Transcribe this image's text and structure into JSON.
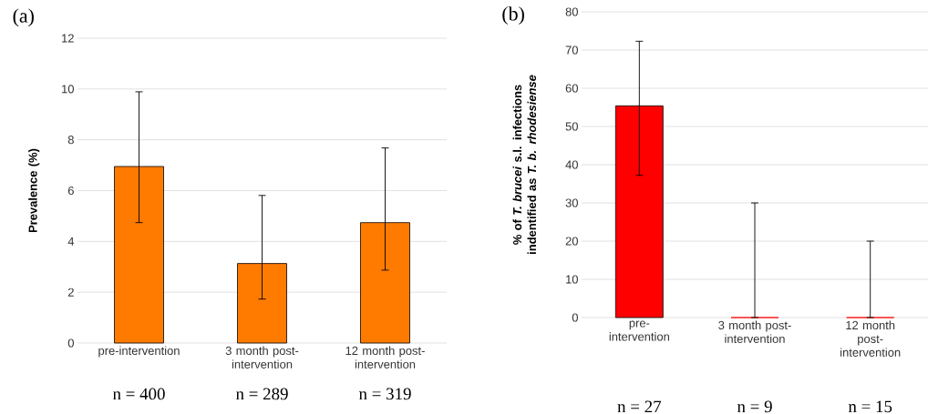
{
  "chart_data": [
    {
      "type": "bar",
      "title": "(a)",
      "ylabel": "Prevalence (%)",
      "categories": [
        "pre-intervention",
        "3 month post-intervention",
        "12 month post-intervention"
      ],
      "values": [
        6.95,
        3.13,
        4.74
      ],
      "errors": [
        [
          4.74,
          9.89
        ],
        [
          1.73,
          5.81
        ],
        [
          2.87,
          7.68
        ]
      ],
      "color": "#ff7b00",
      "ylim": [
        0,
        12
      ],
      "yticks": [
        0,
        2,
        4,
        6,
        8,
        10,
        12
      ],
      "grid": "y",
      "annotations": [
        "n = 400",
        "n = 289",
        "n = 319"
      ]
    },
    {
      "type": "bar",
      "title": "(b)",
      "ylabel": "% of *T. brucei* s.l. infections indentified as *T. b. rhodesiense*",
      "categories": [
        "pre-intervention",
        "3 month post-intervention",
        "12 month post-intervention"
      ],
      "values": [
        55.4,
        0,
        0
      ],
      "errors": [
        [
          37.2,
          72.3
        ],
        [
          0,
          30
        ],
        [
          0,
          20
        ]
      ],
      "color": "#ff0000",
      "ylim": [
        0,
        80
      ],
      "yticks": [
        0,
        10,
        20,
        30,
        40,
        50,
        60,
        70,
        80
      ],
      "grid": "y",
      "annotations": [
        "n = 27",
        "n = 9",
        "n = 15"
      ]
    }
  ]
}
